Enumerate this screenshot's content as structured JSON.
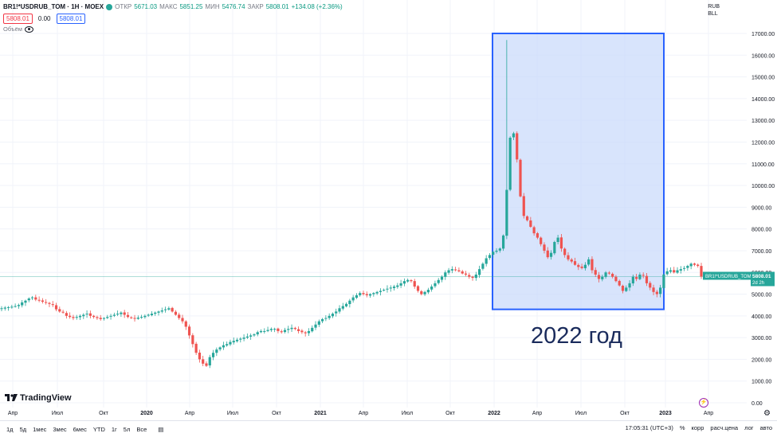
{
  "header": {
    "symbol": "BR1!*USDRUB_TOM · 1Н · MOEX",
    "o_label": "ОТКР",
    "o_value": "5671.03",
    "h_label": "МАКС",
    "h_value": "5851.25",
    "l_label": "МИН",
    "l_value": "5476.74",
    "c_label": "ЗАКР",
    "c_value": "5808.01",
    "change": "+134.08 (+2.36%)",
    "sell_price": "5808.01",
    "spread": "0.00",
    "buy_price": "5808.01",
    "volume_label": "Объём"
  },
  "currency_top": "RUB",
  "currency_bottom": "BLL",
  "price_tag": {
    "name": "BR1!*USDRUB_TOM",
    "price": "5808.01",
    "countdown": "2d 2h"
  },
  "annotation": "2022 год",
  "brand": "TradingView",
  "timeframes": [
    "1д",
    "5д",
    "1мес",
    "3мес",
    "6мес",
    "YTD",
    "1г",
    "5л",
    "Все"
  ],
  "status": {
    "time": "17:05:31 (UTC+3)",
    "pct": "%",
    "corr": "корр",
    "settle": "расч.цена",
    "log": "лог",
    "auto": "авто"
  },
  "colors": {
    "up": "#26a69a",
    "down": "#ef5350",
    "highlight_fill": "#c7d8fb",
    "highlight_border": "#2962ff"
  },
  "chart_data": {
    "type": "candlestick",
    "x_labels": [
      "Апр",
      "Июл",
      "Окт",
      "2020",
      "Апр",
      "Июл",
      "Окт",
      "2021",
      "Апр",
      "Июл",
      "Окт",
      "2022",
      "Апр",
      "Июл",
      "Окт",
      "2023",
      "Апр"
    ],
    "y_ticks": [
      0,
      1000,
      2000,
      3000,
      4000,
      5000,
      6000,
      7000,
      8000,
      9000,
      10000,
      11000,
      12000,
      13000,
      14000,
      15000,
      16000,
      17000
    ],
    "ylim": [
      0,
      18000
    ],
    "last_price": 5808.01,
    "weekly_closes": [
      4350,
      4380,
      4400,
      4420,
      4450,
      4500,
      4620,
      4700,
      4800,
      4850,
      4750,
      4720,
      4650,
      4600,
      4550,
      4500,
      4300,
      4200,
      4150,
      4000,
      3950,
      3900,
      3950,
      4000,
      4050,
      4100,
      4000,
      3950,
      3900,
      3850,
      3900,
      3950,
      4000,
      4050,
      4100,
      4150,
      4050,
      3950,
      3900,
      3880,
      3920,
      3950,
      4000,
      4050,
      4100,
      4150,
      4200,
      4250,
      4300,
      4350,
      4200,
      4050,
      3900,
      3750,
      3500,
      3100,
      2700,
      2300,
      2000,
      1800,
      1700,
      2100,
      2300,
      2450,
      2550,
      2650,
      2700,
      2800,
      2850,
      2900,
      2950,
      3000,
      3050,
      3100,
      3150,
      3250,
      3300,
      3300,
      3350,
      3400,
      3400,
      3300,
      3250,
      3350,
      3400,
      3450,
      3400,
      3300,
      3250,
      3200,
      3300,
      3450,
      3600,
      3750,
      3850,
      3900,
      4000,
      4100,
      4200,
      4350,
      4450,
      4550,
      4700,
      4850,
      4950,
      5050,
      5000,
      4950,
      5000,
      5050,
      5100,
      5150,
      5200,
      5250,
      5300,
      5350,
      5400,
      5500,
      5600,
      5650,
      5600,
      5350,
      5150,
      5000,
      5100,
      5200,
      5350,
      5500,
      5650,
      5800,
      6000,
      6100,
      6150,
      6100,
      6050,
      5950,
      5900,
      5800,
      5750,
      5900,
      6150,
      6400,
      6650,
      6800,
      6950,
      7000,
      7100,
      7700,
      9800,
      12200,
      12400,
      11200,
      9500,
      8600,
      8400,
      8100,
      7800,
      7600,
      7300,
      7000,
      6700,
      6900,
      7400,
      7600,
      7100,
      6800,
      6600,
      6500,
      6350,
      6250,
      6200,
      6350,
      6600,
      6100,
      5900,
      5700,
      5800,
      6000,
      5950,
      5800,
      5600,
      5400,
      5150,
      5300,
      5500,
      5800,
      5700,
      5900,
      5850,
      5500,
      5300,
      5100,
      5000,
      5300,
      5900,
      6050,
      6100,
      6000,
      6100,
      6150,
      6200,
      6300,
      6400,
      6350,
      6300,
      5808.01
    ],
    "spike_high": 16700,
    "highlight_range": {
      "x_from": "2022",
      "x_to": "2023",
      "y_from": 4300,
      "y_to": 17000
    }
  }
}
